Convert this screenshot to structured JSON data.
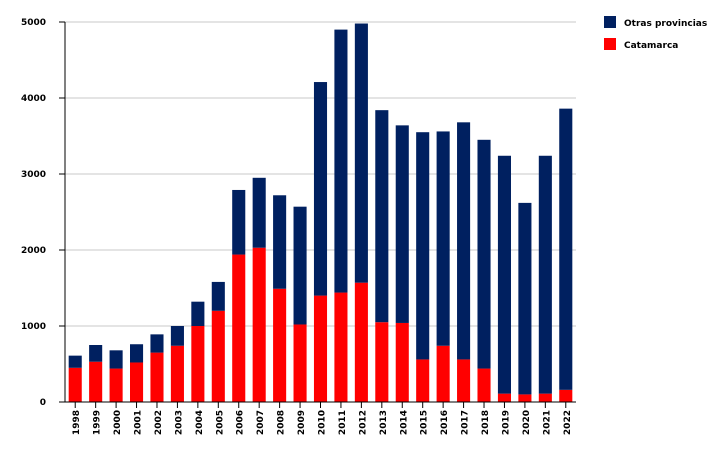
{
  "chart_data": {
    "type": "bar",
    "stacked": true,
    "categories": [
      "1998",
      "1999",
      "2000",
      "2001",
      "2002",
      "2003",
      "2004",
      "2005",
      "2006",
      "2007",
      "2008",
      "2009",
      "2010",
      "2011",
      "2012",
      "2013",
      "2014",
      "2015",
      "2016",
      "2017",
      "2018",
      "2019",
      "2020",
      "2021",
      "2022"
    ],
    "series": [
      {
        "name": "Catamarca",
        "color": "#ff0000",
        "values": [
          450,
          530,
          440,
          520,
          650,
          740,
          1000,
          1200,
          1940,
          2030,
          1490,
          1020,
          1400,
          1440,
          1570,
          1050,
          1040,
          560,
          740,
          560,
          440,
          110,
          100,
          110,
          160
        ]
      },
      {
        "name": "Otras provincias",
        "color": "#002060",
        "values": [
          160,
          220,
          240,
          240,
          240,
          260,
          320,
          380,
          850,
          920,
          1230,
          1550,
          2810,
          3460,
          3410,
          2790,
          2600,
          2990,
          2820,
          3120,
          3010,
          3130,
          2520,
          3130,
          3700
        ]
      }
    ],
    "title": "",
    "xlabel": "",
    "ylabel": "",
    "ylim": [
      0,
      5000
    ],
    "yticks": [
      0,
      1000,
      2000,
      3000,
      4000,
      5000
    ],
    "grid": true,
    "legend_position": "top-right",
    "legend_order": [
      "Otras provincias",
      "Catamarca"
    ]
  }
}
